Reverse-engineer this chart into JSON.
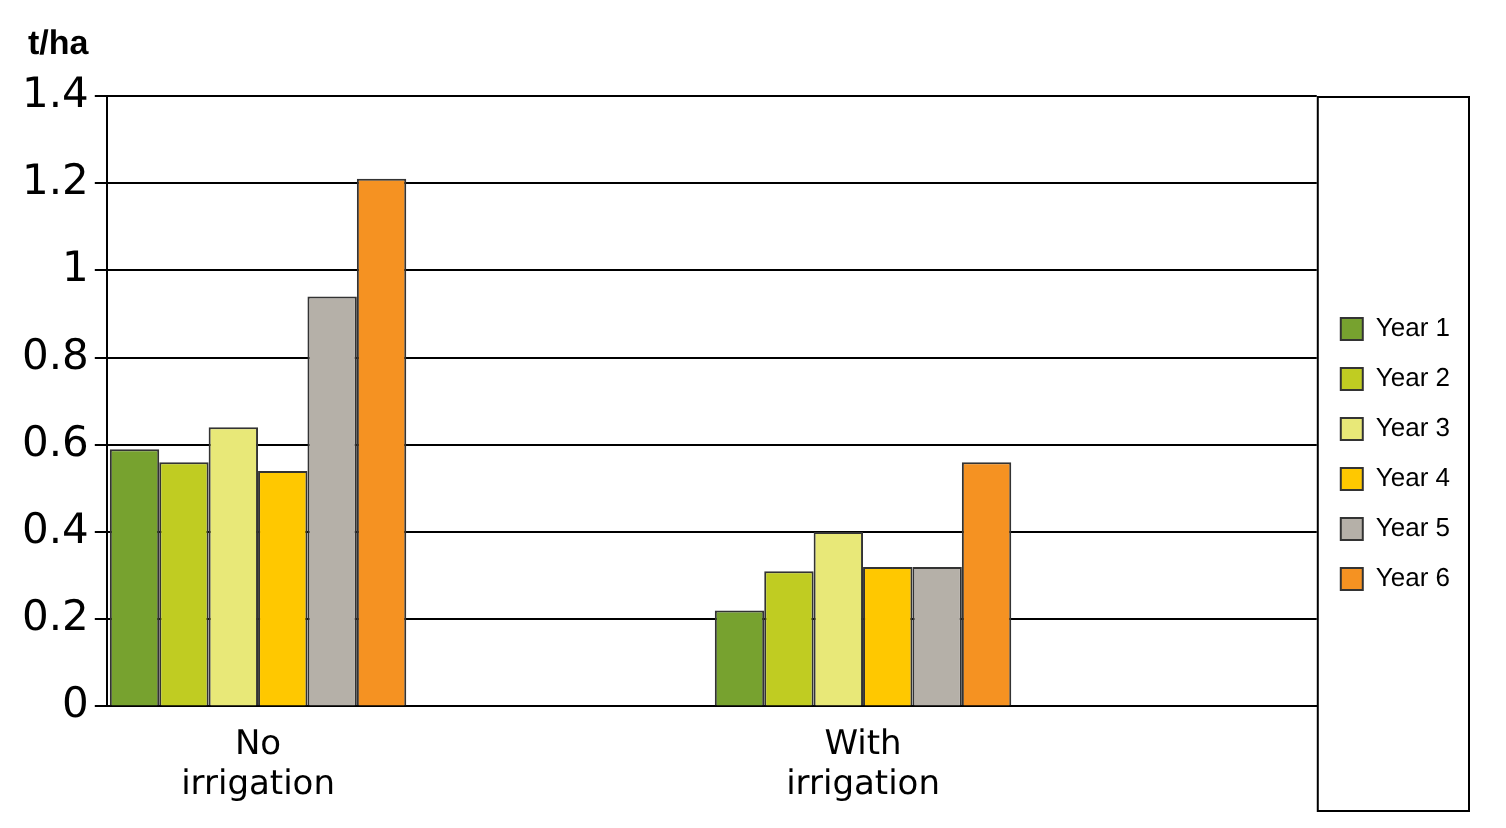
{
  "chart_data": {
    "type": "bar",
    "ylabel": "t/ha",
    "categories": [
      "No irrigation",
      null,
      "With irrigation",
      null
    ],
    "series": [
      {
        "name": "Year 1",
        "color": "#77a22f",
        "values": [
          0.59,
          null,
          0.22,
          null
        ]
      },
      {
        "name": "Year 2",
        "color": "#c0cc22",
        "values": [
          0.56,
          null,
          0.31,
          null
        ]
      },
      {
        "name": "Year 3",
        "color": "#e8e878",
        "values": [
          0.64,
          null,
          0.4,
          null
        ]
      },
      {
        "name": "Year 4",
        "color": "#ffc800",
        "values": [
          0.54,
          null,
          0.32,
          null
        ]
      },
      {
        "name": "Year 5",
        "color": "#b5b0a8",
        "values": [
          0.94,
          null,
          0.32,
          null
        ]
      },
      {
        "name": "Year 6",
        "color": "#f59222",
        "values": [
          1.21,
          null,
          0.56,
          null
        ]
      }
    ],
    "ylim": [
      0,
      1.4
    ],
    "yticks": [
      0,
      0.2,
      0.4,
      0.6,
      0.8,
      1,
      1.2,
      1.4
    ],
    "grid": "y",
    "legend": "right"
  }
}
